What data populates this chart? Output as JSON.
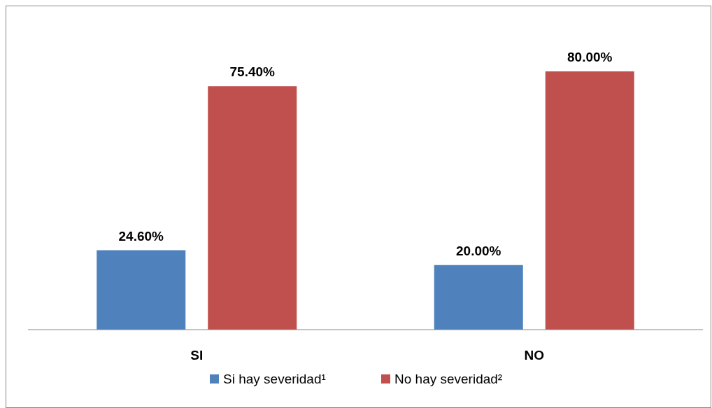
{
  "chart_data": {
    "type": "bar",
    "categories": [
      "SI",
      "NO"
    ],
    "series": [
      {
        "name": "Si hay severidad¹",
        "color": "#4f81bd",
        "values": [
          24.6,
          20.0
        ],
        "value_labels": [
          "24.60%",
          "20.00%"
        ]
      },
      {
        "name": "No hay severidad²",
        "color": "#c0504d",
        "values": [
          75.4,
          80.0
        ],
        "value_labels": [
          "75.40%",
          "80.00%"
        ]
      }
    ],
    "legend": "bottom"
  }
}
